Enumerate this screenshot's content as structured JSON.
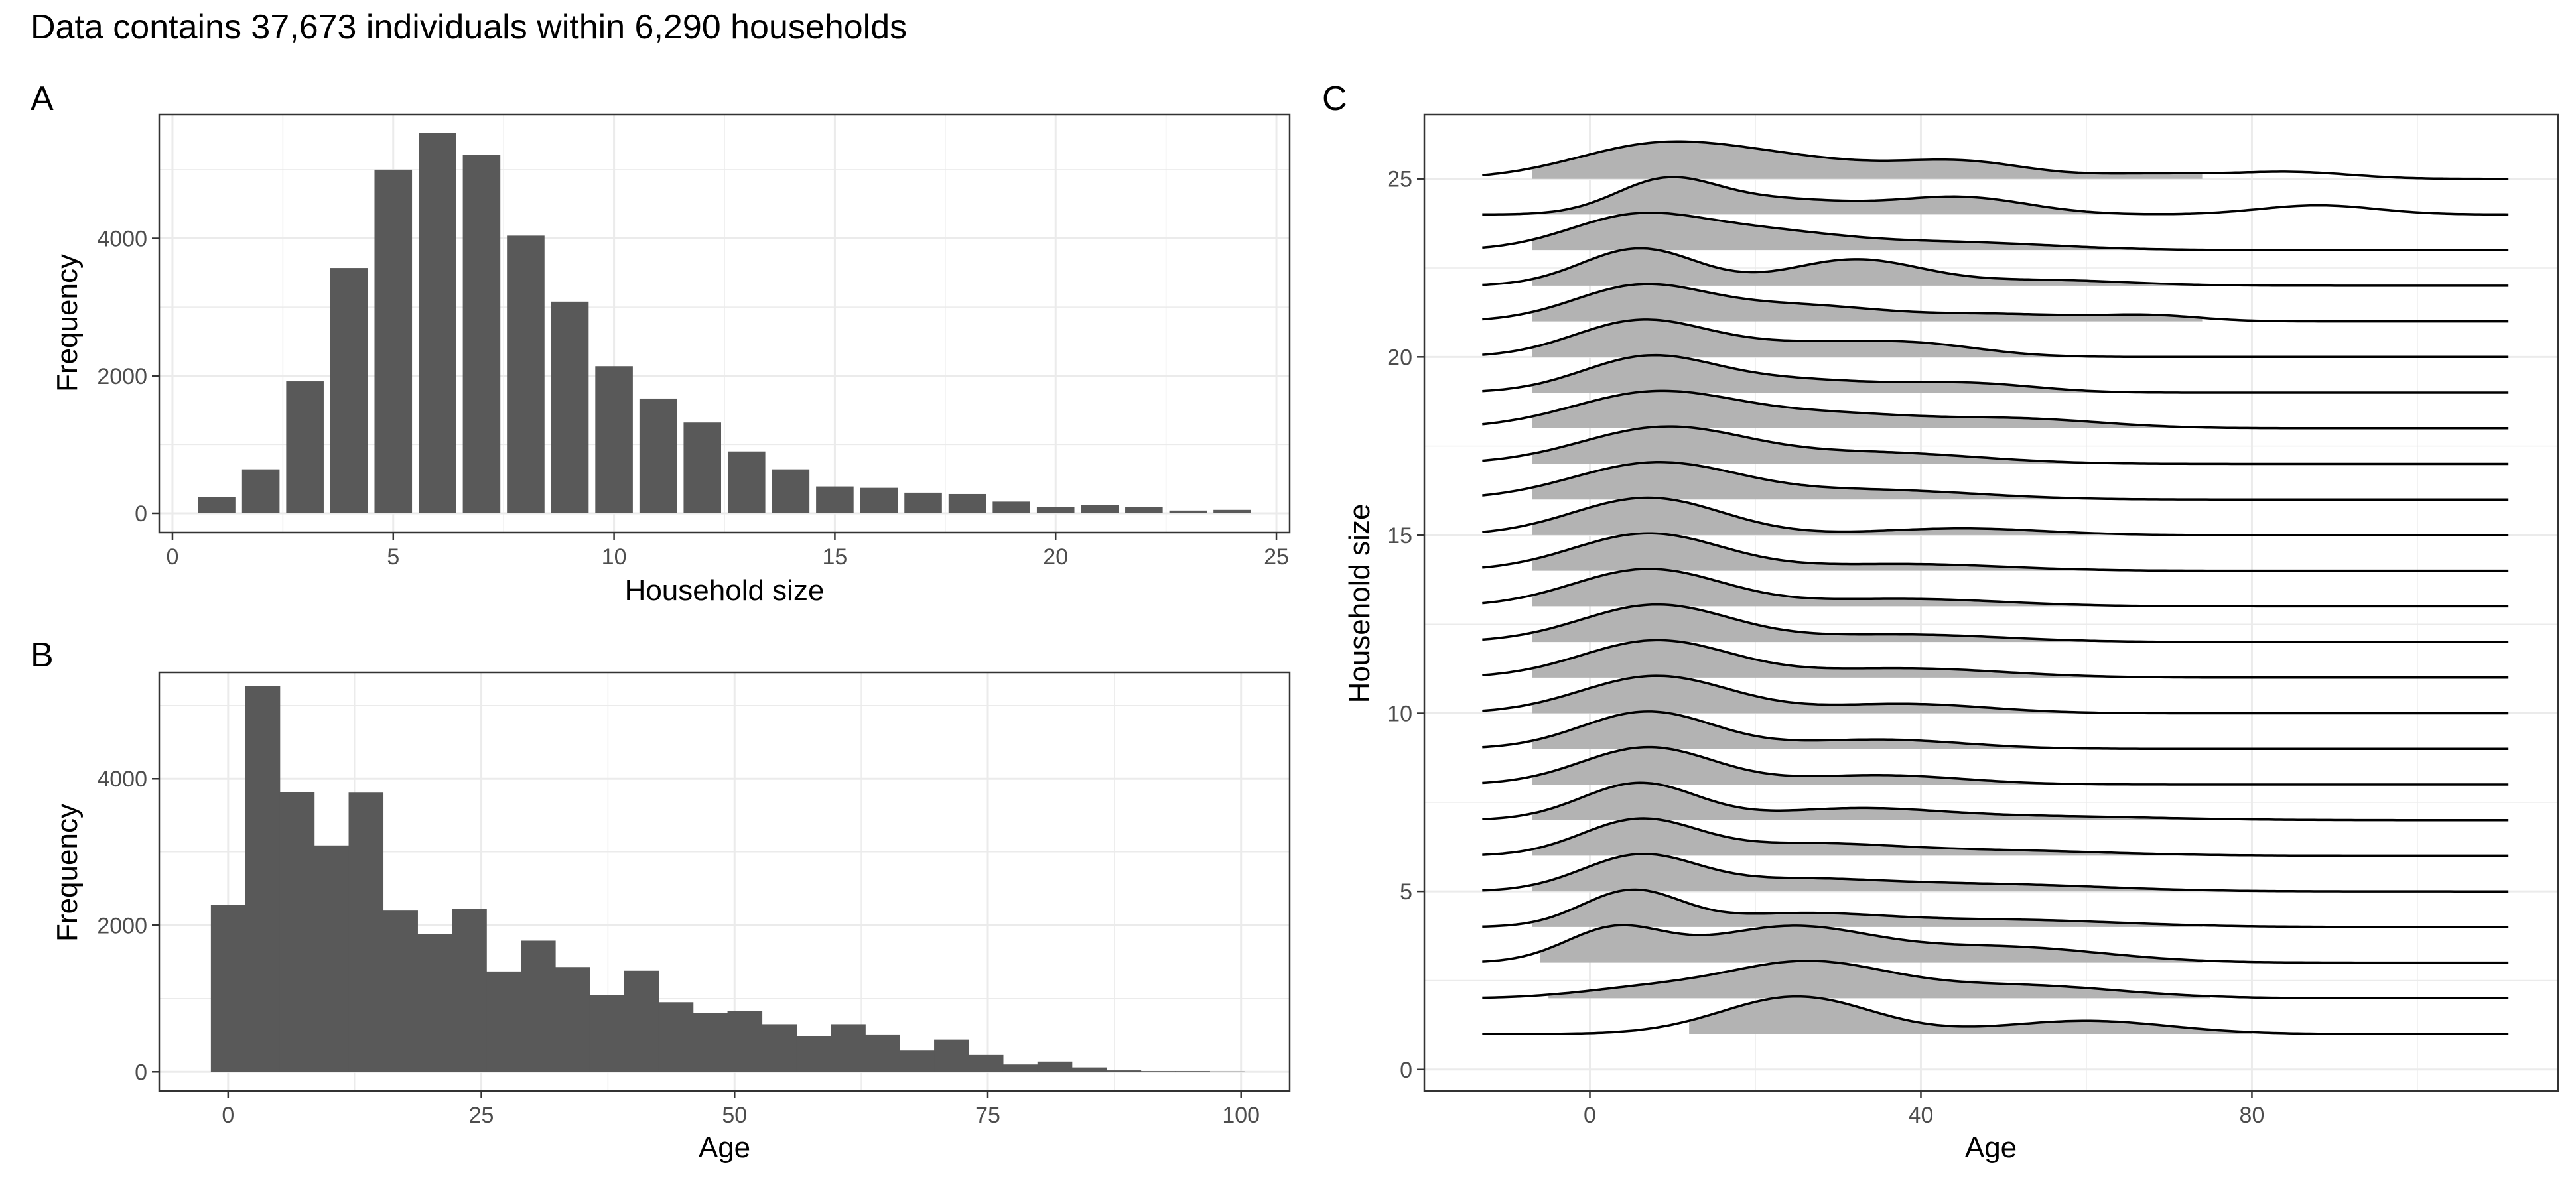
{
  "figure": {
    "title": "Data contains 37,673 individuals within 6,290 households",
    "colors": {
      "bar": "#595959",
      "ridge_fill": "#b3b3b3",
      "grid": "#ebebeb",
      "panel_border": "#333333"
    }
  },
  "chart_data": [
    {
      "tag": "A",
      "type": "bar",
      "title": "",
      "xlabel": "Household size",
      "ylabel": "Frequency",
      "xlim": [
        -0.3,
        25.3
      ],
      "ylim": [
        -280,
        5800
      ],
      "xticks": [
        0,
        5,
        10,
        15,
        20,
        25
      ],
      "yticks": [
        0,
        2000,
        4000
      ],
      "grid": true,
      "bar_width": 0.85,
      "x": [
        1,
        2,
        3,
        4,
        5,
        6,
        7,
        8,
        9,
        10,
        11,
        12,
        13,
        14,
        15,
        16,
        17,
        18,
        19,
        20,
        21,
        22,
        23,
        24
      ],
      "values": [
        240,
        640,
        1920,
        3570,
        5000,
        5530,
        5220,
        4040,
        3080,
        2140,
        1670,
        1320,
        900,
        640,
        390,
        370,
        300,
        280,
        170,
        90,
        120,
        90,
        40,
        50
      ]
    },
    {
      "tag": "B",
      "type": "bar",
      "title": "",
      "xlabel": "Age",
      "ylabel": "Frequency",
      "xlim": [
        -6.8,
        104.8
      ],
      "ylim": [
        -260,
        5450
      ],
      "xticks": [
        0,
        25,
        50,
        75,
        100
      ],
      "yticks": [
        0,
        2000,
        4000
      ],
      "grid": true,
      "bin_width": 3.4,
      "bin_start": -1.7,
      "values": [
        2280,
        5260,
        3820,
        3090,
        3810,
        2200,
        1880,
        2220,
        1370,
        1790,
        1430,
        1050,
        1380,
        950,
        800,
        830,
        650,
        490,
        650,
        510,
        290,
        440,
        230,
        100,
        140,
        60,
        20,
        10,
        10,
        5
      ]
    },
    {
      "tag": "C",
      "type": "area",
      "subtype": "ridgeline",
      "title": "",
      "xlabel": "Age",
      "ylabel": "Household size",
      "xlim": [
        -20,
        117
      ],
      "ylim": [
        -0.6,
        26.8
      ],
      "xticks": [
        0,
        40,
        80
      ],
      "yticks": [
        0,
        5,
        10,
        15,
        20,
        25
      ],
      "grid": true,
      "ridge_x_range": [
        -13,
        111
      ],
      "ridge_scale": 1.05,
      "series": [
        {
          "y": 1,
          "fill_range": [
            12,
            80
          ],
          "peaks": [
            [
              25,
              1,
              9
            ],
            [
              60,
              0.35,
              10
            ]
          ]
        },
        {
          "y": 2,
          "fill_range": [
            -5,
            75
          ],
          "peaks": [
            [
              6,
              0.2,
              8
            ],
            [
              26,
              0.85,
              10
            ],
            [
              52,
              0.3,
              12
            ]
          ]
        },
        {
          "y": 3,
          "fill_range": [
            -6,
            74
          ],
          "peaks": [
            [
              3,
              0.75,
              6
            ],
            [
              24,
              0.8,
              10
            ],
            [
              50,
              0.35,
              12
            ]
          ]
        },
        {
          "y": 4,
          "fill_range": [
            -7,
            74
          ],
          "peaks": [
            [
              5,
              1,
              6
            ],
            [
              25,
              0.35,
              10
            ],
            [
              50,
              0.2,
              14
            ]
          ]
        },
        {
          "y": 5,
          "fill_range": [
            -7,
            74
          ],
          "peaks": [
            [
              6,
              1,
              7
            ],
            [
              25,
              0.3,
              10
            ],
            [
              48,
              0.2,
              14
            ]
          ]
        },
        {
          "y": 6,
          "fill_range": [
            -7,
            74
          ],
          "peaks": [
            [
              6,
              1,
              7
            ],
            [
              26,
              0.3,
              10
            ],
            [
              48,
              0.15,
              14
            ]
          ]
        },
        {
          "y": 7,
          "fill_range": [
            -7,
            74
          ],
          "peaks": [
            [
              6,
              1,
              7
            ],
            [
              32,
              0.3,
              10
            ],
            [
              55,
              0.1,
              14
            ]
          ]
        },
        {
          "y": 8,
          "fill_range": [
            -7,
            74
          ],
          "peaks": [
            [
              7,
              1,
              8
            ],
            [
              35,
              0.25,
              10
            ]
          ]
        },
        {
          "y": 9,
          "fill_range": [
            -7,
            74
          ],
          "peaks": [
            [
              7,
              1,
              8
            ],
            [
              35,
              0.25,
              10
            ]
          ]
        },
        {
          "y": 10,
          "fill_range": [
            -7,
            74
          ],
          "peaks": [
            [
              8,
              1,
              9
            ],
            [
              38,
              0.25,
              10
            ]
          ]
        },
        {
          "y": 11,
          "fill_range": [
            -7,
            74
          ],
          "peaks": [
            [
              8,
              1,
              9
            ],
            [
              38,
              0.25,
              12
            ]
          ]
        },
        {
          "y": 12,
          "fill_range": [
            -7,
            74
          ],
          "peaks": [
            [
              8,
              1,
              9
            ],
            [
              38,
              0.2,
              12
            ]
          ]
        },
        {
          "y": 13,
          "fill_range": [
            -7,
            74
          ],
          "peaks": [
            [
              7,
              1,
              9
            ],
            [
              38,
              0.2,
              12
            ]
          ]
        },
        {
          "y": 14,
          "fill_range": [
            -7,
            74
          ],
          "peaks": [
            [
              7,
              1,
              9
            ],
            [
              38,
              0.18,
              12
            ]
          ]
        },
        {
          "y": 15,
          "fill_range": [
            -7,
            74
          ],
          "peaks": [
            [
              7,
              1,
              9
            ],
            [
              45,
              0.18,
              10
            ]
          ]
        },
        {
          "y": 16,
          "fill_range": [
            -7,
            74
          ],
          "peaks": [
            [
              8,
              1,
              10
            ],
            [
              35,
              0.25,
              12
            ]
          ]
        },
        {
          "y": 17,
          "fill_range": [
            -7,
            74
          ],
          "peaks": [
            [
              9,
              1,
              10
            ],
            [
              35,
              0.3,
              12
            ]
          ]
        },
        {
          "y": 18,
          "fill_range": [
            -7,
            74
          ],
          "peaks": [
            [
              8,
              1,
              10
            ],
            [
              30,
              0.35,
              10
            ],
            [
              52,
              0.25,
              10
            ]
          ]
        },
        {
          "y": 19,
          "fill_range": [
            -7,
            74
          ],
          "peaks": [
            [
              7,
              1,
              8
            ],
            [
              25,
              0.35,
              10
            ],
            [
              46,
              0.25,
              8
            ]
          ]
        },
        {
          "y": 20,
          "fill_range": [
            -7,
            74
          ],
          "peaks": [
            [
              6,
              1,
              8
            ],
            [
              25,
              0.35,
              10
            ],
            [
              40,
              0.3,
              8
            ]
          ]
        },
        {
          "y": 21,
          "fill_range": [
            -7,
            74
          ],
          "peaks": [
            [
              6,
              1,
              8
            ],
            [
              25,
              0.45,
              10
            ],
            [
              50,
              0.2,
              10
            ],
            [
              68,
              0.15,
              6
            ]
          ]
        },
        {
          "y": 22,
          "fill_range": [
            -7,
            74
          ],
          "peaks": [
            [
              6,
              1,
              7
            ],
            [
              32,
              0.7,
              8
            ],
            [
              55,
              0.15,
              10
            ]
          ]
        },
        {
          "y": 23,
          "fill_range": [
            -7,
            74
          ],
          "peaks": [
            [
              5,
              1,
              8
            ],
            [
              20,
              0.6,
              10
            ],
            [
              44,
              0.25,
              12
            ]
          ]
        },
        {
          "y": 24,
          "fill_range": [
            -7,
            74
          ],
          "peaks": [
            [
              9,
              1,
              6
            ],
            [
              22,
              0.5,
              10
            ],
            [
              45,
              0.55,
              8
            ],
            [
              88,
              0.3,
              7
            ]
          ]
        },
        {
          "y": 25,
          "fill_range": [
            -7,
            74
          ],
          "peaks": [
            [
              8,
              1,
              10
            ],
            [
              25,
              0.5,
              10
            ],
            [
              45,
              0.5,
              8
            ],
            [
              68,
              0.15,
              8
            ],
            [
              85,
              0.2,
              7
            ]
          ]
        }
      ]
    }
  ]
}
